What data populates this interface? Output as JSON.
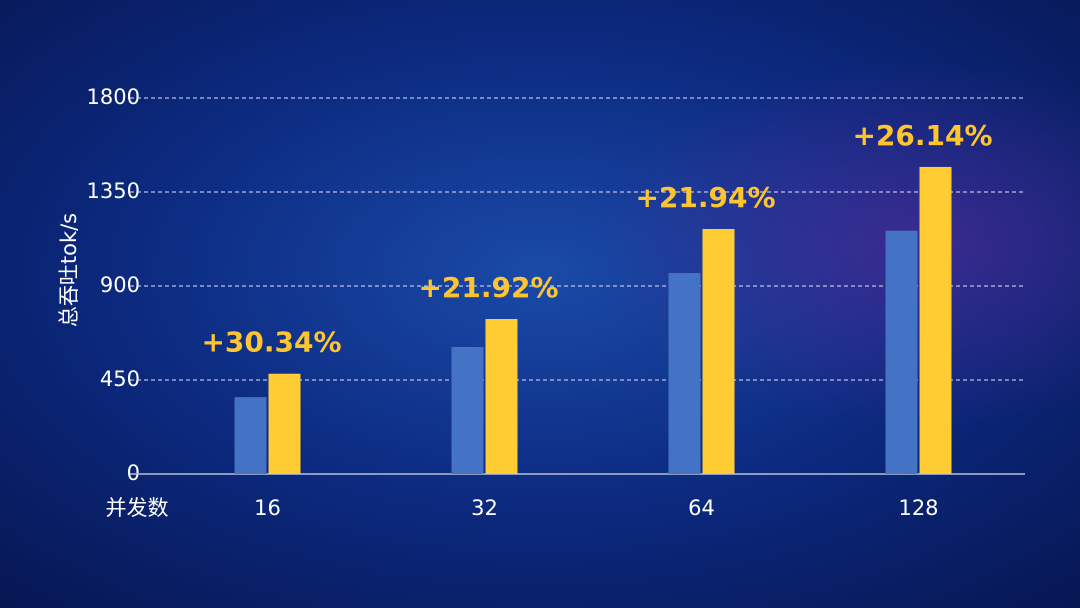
{
  "chart_data": {
    "type": "bar",
    "categories": [
      "16",
      "32",
      "64",
      "128"
    ],
    "series": [
      {
        "color": "#4472c4",
        "values": [
          368,
          608,
          962,
          1165
        ]
      },
      {
        "color": "#ffcc33",
        "values": [
          480,
          742,
          1173,
          1470
        ]
      }
    ],
    "annotations": [
      "+30.34%",
      "+21.92%",
      "+21.94%",
      "+26.14%"
    ],
    "annotation_color": "#ffc52e",
    "y_label": "总吞吐tok/s",
    "x_label": "并发数",
    "ylim": [
      0,
      1800
    ],
    "yticks": [
      0,
      450,
      900,
      1350,
      1800
    ],
    "grid": true
  }
}
